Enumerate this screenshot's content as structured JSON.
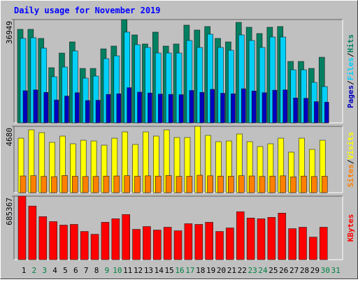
{
  "title": "Daily usage for November 2019",
  "legend_separator": "/",
  "chart_data": [
    {
      "type": "bar",
      "ylim": [
        0,
        36949
      ],
      "yticks": [
        36949
      ],
      "series": [
        {
          "name": "Hits",
          "color": "#008060",
          "values": [
            33454,
            33454,
            30209,
            19723,
            24966,
            28960,
            19473,
            19473,
            26464,
            27463,
            36949,
            31457,
            28211,
            32456,
            27463,
            28211,
            34952,
            33205,
            34453,
            30209,
            28960,
            35951,
            34203,
            31956,
            34203,
            34453,
            21970,
            21970,
            19473,
            23468,
            null
          ]
        },
        {
          "name": "Files",
          "color": "#00d0f8",
          "values": [
            30209,
            30459,
            26714,
            16478,
            19973,
            25715,
            15978,
            16727,
            22969,
            23967,
            32456,
            27962,
            26963,
            24966,
            24966,
            24966,
            29460,
            26963,
            31707,
            26963,
            25965,
            31457,
            29460,
            26963,
            30708,
            30708,
            18974,
            18974,
            14480,
            12982,
            null
          ]
        },
        {
          "name": "Pages",
          "color": "#0000c0",
          "values": [
            11500,
            11800,
            10900,
            8200,
            9600,
            10800,
            8000,
            8100,
            10200,
            10400,
            12600,
            11000,
            10700,
            10300,
            10200,
            10100,
            11600,
            10900,
            12000,
            10600,
            10400,
            12200,
            11400,
            10800,
            11700,
            11800,
            8900,
            8800,
            7600,
            7400,
            null
          ]
        }
      ]
    },
    {
      "type": "bar",
      "ylim": [
        0,
        4680
      ],
      "yticks": [
        4680
      ],
      "series": [
        {
          "name": "Visits",
          "color": "#ffff00",
          "values": [
            3842,
            4433,
            4236,
            3547,
            3990,
            3448,
            3695,
            3645,
            3350,
            3842,
            4286,
            3399,
            4286,
            3990,
            4433,
            3892,
            3892,
            4680,
            4039,
            3596,
            3645,
            4138,
            3596,
            3251,
            3448,
            3842,
            2857,
            3842,
            3054,
            3695,
            null
          ]
        },
        {
          "name": "Sites",
          "color": "#ff8000",
          "values": [
            1180,
            1200,
            1150,
            1130,
            1210,
            1160,
            1140,
            1150,
            1170,
            1180,
            1200,
            1160,
            1190,
            1170,
            1210,
            1150,
            1160,
            1230,
            1190,
            1170,
            1160,
            1200,
            1180,
            1150,
            1170,
            1190,
            1120,
            1170,
            1140,
            1160,
            null
          ]
        }
      ]
    },
    {
      "type": "bar",
      "ylim": [
        0,
        685367
      ],
      "yticks": [
        685367
      ],
      "categories": [
        "1",
        "2",
        "3",
        "4",
        "5",
        "6",
        "7",
        "8",
        "9",
        "10",
        "11",
        "12",
        "13",
        "14",
        "15",
        "16",
        "17",
        "18",
        "19",
        "20",
        "21",
        "22",
        "23",
        "24",
        "25",
        "26",
        "27",
        "28",
        "29",
        "30",
        "31"
      ],
      "category_colors": [
        "#000000",
        "#008040",
        "#008040",
        "#000000",
        "#000000",
        "#000000",
        "#000000",
        "#000000",
        "#008040",
        "#008040",
        "#000000",
        "#000000",
        "#000000",
        "#000000",
        "#000000",
        "#008040",
        "#008040",
        "#000000",
        "#000000",
        "#000000",
        "#000000",
        "#000000",
        "#008040",
        "#008040",
        "#000000",
        "#000000",
        "#000000",
        "#000000",
        "#000000",
        "#008040",
        "#008040"
      ],
      "series": [
        {
          "name": "KBytes",
          "color": "#ff0000",
          "values": [
            685367,
            578740,
            464515,
            411210,
            373135,
            380750,
            304600,
            274140,
            403595,
            441670,
            487360,
            327445,
            357905,
            319830,
            350290,
            312215,
            388365,
            380750,
            403595,
            304600,
            342675,
            517820,
            449285,
            441670,
            456900,
            502590,
            335060,
            350290,
            243680,
            350290,
            null
          ]
        }
      ]
    }
  ]
}
